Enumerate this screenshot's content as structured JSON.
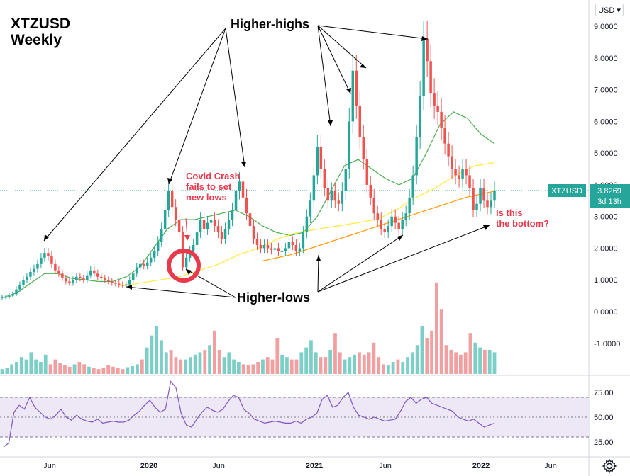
{
  "header": {
    "symbol": "XTZUSD",
    "interval": "Weekly"
  },
  "currency_button": "USD ▾",
  "price_label": {
    "symbol": "XTZUSD",
    "price": "3.8269",
    "countdown": "3d 13h"
  },
  "annotations": {
    "higher_highs": "Higher-highs",
    "higher_lows": "Higher-lows",
    "covid_line1": "Covid Crash",
    "covid_line2": "fails to set",
    "covid_line3": "new lows",
    "bottom_line1": "Is this",
    "bottom_line2": "the bottom?"
  },
  "colors": {
    "up": "#26a69a",
    "down": "#ef5350",
    "ma_green": "#4caf50",
    "ma_yellow": "#ffeb3b",
    "ma_orange": "#ff9800",
    "rsi": "#7e57c2",
    "rsi_band": "#ede7f6",
    "annotation_red": "#e8394d"
  },
  "chart_data": [
    {
      "type": "candlestick",
      "title": "XTZUSD Weekly",
      "x_tick_labels": [
        "Jun",
        "2020",
        "Jun",
        "2021",
        "Jun",
        "2022",
        "Jun"
      ],
      "y_tick_labels": [
        "9.0000",
        "8.0000",
        "7.0000",
        "6.0000",
        "5.0000",
        "4.0000",
        "3.0000",
        "2.0000",
        "1.0000",
        "0.0000",
        "-1.0000"
      ],
      "ylim": [
        -1.3,
        9.4
      ],
      "last_price": 3.8269,
      "series": [
        {
          "name": "close",
          "values": [
            0.45,
            0.46,
            0.5,
            0.55,
            0.7,
            0.85,
            1.0,
            1.1,
            1.25,
            1.35,
            1.5,
            1.7,
            1.85,
            1.75,
            1.5,
            1.3,
            1.2,
            1.05,
            0.95,
            0.9,
            1.0,
            1.1,
            1.05,
            1.0,
            1.15,
            1.3,
            1.2,
            1.1,
            1.05,
            1.0,
            0.95,
            0.9,
            0.88,
            0.85,
            0.82,
            0.86,
            1.0,
            1.2,
            1.4,
            1.5,
            1.45,
            1.55,
            1.7,
            1.9,
            2.2,
            2.6,
            3.2,
            3.8,
            3.3,
            2.9,
            2.5,
            1.4,
            1.7,
            1.9,
            2.1,
            2.5,
            2.9,
            2.6,
            2.8,
            2.9,
            2.7,
            2.5,
            2.3,
            2.6,
            2.9,
            3.2,
            3.8,
            4.1,
            3.6,
            3.1,
            2.7,
            2.3,
            2.1,
            2.0,
            2.1,
            2.0,
            1.95,
            2.0,
            1.9,
            1.9,
            2.0,
            2.2,
            2.1,
            1.9,
            2.0,
            2.5,
            3.0,
            3.5,
            4.3,
            5.2,
            4.5,
            3.9,
            3.5,
            3.8,
            3.5,
            3.4,
            3.8,
            4.5,
            6.0,
            7.6,
            6.5,
            5.5,
            4.8,
            4.0,
            3.6,
            3.1,
            2.9,
            2.6,
            2.5,
            2.7,
            3.0,
            2.8,
            2.6,
            2.9,
            3.1,
            3.6,
            4.3,
            5.5,
            6.8,
            8.6,
            7.9,
            6.9,
            6.5,
            6.3,
            5.8,
            5.3,
            4.9,
            4.5,
            4.3,
            4.2,
            4.5,
            4.3,
            3.9,
            3.2,
            3.4,
            3.9,
            3.5,
            3.3,
            3.5,
            3.8269
          ]
        },
        {
          "name": "MA green",
          "values": [
            0.45,
            0.6,
            0.9,
            1.2,
            1.2,
            1.05,
            1.0,
            0.95,
            0.95,
            1.1,
            1.4,
            2.0,
            2.6,
            2.9,
            2.9,
            3.0,
            3.1,
            3.2,
            3.0,
            2.7,
            2.5,
            2.4,
            2.5,
            3.0,
            3.8,
            4.6,
            4.8,
            4.5,
            4.2,
            4.0,
            4.2,
            5.0,
            5.9,
            6.3,
            6.1,
            5.6,
            5.3
          ]
        },
        {
          "name": "MA yellow",
          "values": [
            0.8,
            0.9,
            1.0,
            1.1,
            1.3,
            1.5,
            1.8,
            2.0,
            2.3,
            2.5,
            2.6,
            2.7,
            2.8,
            2.9,
            3.2,
            3.6,
            3.9,
            4.3,
            4.6,
            4.7
          ]
        },
        {
          "name": "MA orange",
          "values": [
            1.6,
            1.8,
            2.1,
            2.4,
            2.7,
            3.0,
            3.3,
            3.6,
            3.8
          ]
        }
      ],
      "volume_values": [
        0.1,
        0.12,
        0.2,
        0.25,
        0.35,
        0.3,
        0.45,
        0.3,
        0.25,
        0.4,
        0.2,
        0.3,
        0.22,
        0.18,
        0.15,
        0.2,
        0.25,
        0.2,
        0.15,
        0.12,
        0.1,
        0.12,
        0.18,
        0.15,
        0.12,
        0.1,
        0.14,
        0.16,
        0.2,
        0.3,
        0.55,
        0.8,
        1.0,
        0.7,
        0.45,
        0.5,
        0.35,
        0.3,
        0.3,
        0.35,
        0.4,
        0.45,
        0.5,
        0.6,
        0.9,
        0.5,
        0.35,
        0.45,
        0.3,
        0.25,
        0.2,
        0.18,
        0.2,
        0.25,
        0.3,
        0.35,
        0.3,
        0.75,
        0.4,
        0.35,
        0.3,
        0.3,
        0.45,
        0.55,
        0.7,
        0.45,
        0.35,
        0.35,
        0.5,
        0.85,
        0.45,
        0.3,
        0.35,
        0.4,
        0.45,
        0.4,
        0.45,
        0.65,
        0.35,
        0.2,
        0.18,
        0.25,
        0.3,
        0.25,
        0.35,
        0.45,
        0.6,
        1.0,
        0.75,
        0.9,
        1.9,
        1.35,
        0.6,
        0.5,
        0.45,
        0.4,
        0.45,
        0.85,
        0.65,
        0.55,
        0.5,
        0.5,
        0.45
      ],
      "rsi": {
        "y_tick_labels": [
          "75.00",
          "50.00",
          "25.00"
        ],
        "ylim": [
          15,
          90
        ],
        "band": [
          30,
          70
        ],
        "values": [
          20,
          24,
          55,
          62,
          58,
          70,
          60,
          55,
          50,
          48,
          52,
          58,
          50,
          47,
          52,
          48,
          46,
          45,
          48,
          44,
          45,
          46,
          45,
          45,
          47,
          52,
          56,
          62,
          67,
          60,
          55,
          58,
          86,
          80,
          54,
          42,
          40,
          48,
          55,
          60,
          57,
          55,
          58,
          66,
          72,
          70,
          58,
          54,
          48,
          46,
          44,
          45,
          46,
          45,
          44,
          44,
          46,
          44,
          48,
          50,
          54,
          68,
          72,
          60,
          62,
          70,
          75,
          60,
          52,
          50,
          48,
          50,
          48,
          46,
          47,
          48,
          56,
          66,
          70,
          64,
          68,
          70,
          64,
          62,
          60,
          58,
          56,
          50,
          48,
          46,
          48,
          44,
          40,
          42,
          44
        ]
      }
    }
  ]
}
